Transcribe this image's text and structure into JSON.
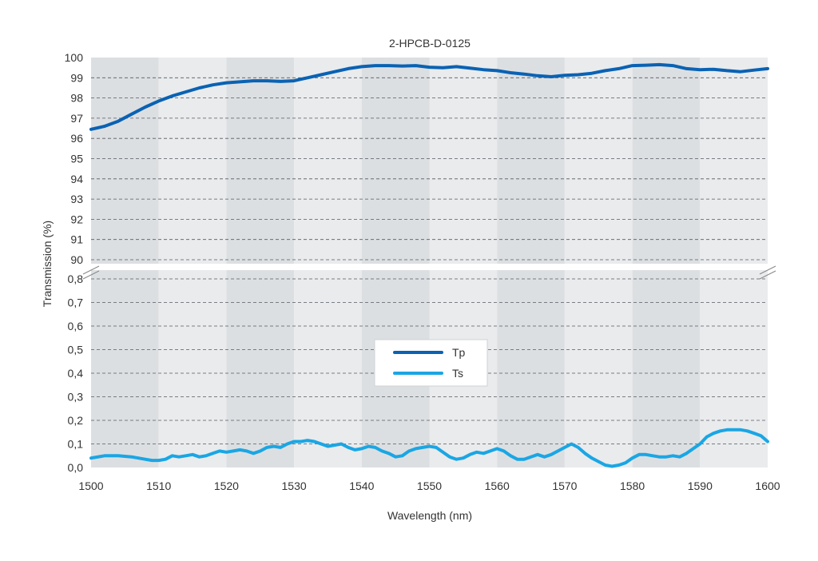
{
  "chart_data": {
    "type": "line",
    "title": "2-HPCB-D-0125",
    "xlabel": "Wavelength (nm)",
    "ylabel": "Transmission (%)",
    "xlim": [
      1500,
      1600
    ],
    "x_ticks": [
      "1500",
      "1510",
      "1520",
      "1530",
      "1540",
      "1550",
      "1560",
      "1570",
      "1580",
      "1590",
      "1600"
    ],
    "y_axis_broken": true,
    "upper_ylim": [
      90,
      100
    ],
    "upper_y_ticks": [
      "100",
      "99",
      "98",
      "97",
      "96",
      "95",
      "94",
      "93",
      "92",
      "91",
      "90"
    ],
    "lower_ylim": [
      0.0,
      0.85
    ],
    "lower_y_ticks": [
      "0,8",
      "0,7",
      "0,6",
      "0,5",
      "0,4",
      "0,3",
      "0,2",
      "0,1",
      "0,0"
    ],
    "grid": "dashed horizontal",
    "background_bands": "alternating gray every 10 nm",
    "legend": {
      "placement": "center",
      "entries": [
        "Tp",
        "Ts"
      ]
    },
    "colors": {
      "Tp": "#0a62b3",
      "Ts": "#1aa6e4",
      "band_dark": "#dcdfe2",
      "band_light": "#e9ebed"
    },
    "series": [
      {
        "name": "Tp",
        "x": [
          1500,
          1502,
          1504,
          1506,
          1508,
          1510,
          1512,
          1514,
          1516,
          1518,
          1520,
          1522,
          1524,
          1526,
          1528,
          1530,
          1532,
          1534,
          1536,
          1538,
          1540,
          1542,
          1544,
          1546,
          1548,
          1550,
          1552,
          1554,
          1556,
          1558,
          1560,
          1562,
          1564,
          1566,
          1568,
          1570,
          1572,
          1574,
          1576,
          1578,
          1580,
          1582,
          1584,
          1586,
          1588,
          1590,
          1592,
          1594,
          1596,
          1598,
          1600
        ],
        "y": [
          96.45,
          96.6,
          96.85,
          97.2,
          97.55,
          97.85,
          98.1,
          98.3,
          98.5,
          98.65,
          98.75,
          98.8,
          98.85,
          98.85,
          98.82,
          98.85,
          99.0,
          99.15,
          99.3,
          99.45,
          99.55,
          99.6,
          99.6,
          99.58,
          99.6,
          99.52,
          99.5,
          99.55,
          99.48,
          99.4,
          99.35,
          99.25,
          99.18,
          99.1,
          99.05,
          99.12,
          99.15,
          99.22,
          99.35,
          99.45,
          99.6,
          99.62,
          99.65,
          99.6,
          99.45,
          99.4,
          99.42,
          99.35,
          99.3,
          99.38,
          99.45
        ]
      },
      {
        "name": "Ts",
        "x": [
          1500,
          1502,
          1504,
          1506,
          1508,
          1509,
          1510,
          1511,
          1512,
          1513,
          1514,
          1515,
          1516,
          1517,
          1518,
          1519,
          1520,
          1521,
          1522,
          1523,
          1524,
          1525,
          1526,
          1527,
          1528,
          1529,
          1530,
          1531,
          1532,
          1533,
          1534,
          1535,
          1536,
          1537,
          1538,
          1539,
          1540,
          1541,
          1542,
          1543,
          1544,
          1545,
          1546,
          1547,
          1548,
          1549,
          1550,
          1551,
          1552,
          1553,
          1554,
          1555,
          1556,
          1557,
          1558,
          1559,
          1560,
          1561,
          1562,
          1563,
          1564,
          1565,
          1566,
          1567,
          1568,
          1569,
          1570,
          1571,
          1572,
          1573,
          1574,
          1575,
          1576,
          1577,
          1578,
          1579,
          1580,
          1581,
          1582,
          1583,
          1584,
          1585,
          1586,
          1587,
          1588,
          1589,
          1590,
          1591,
          1592,
          1593,
          1594,
          1595,
          1596,
          1597,
          1598,
          1599,
          1600
        ],
        "y": [
          0.04,
          0.05,
          0.05,
          0.045,
          0.035,
          0.03,
          0.03,
          0.035,
          0.05,
          0.045,
          0.05,
          0.055,
          0.045,
          0.05,
          0.06,
          0.07,
          0.065,
          0.07,
          0.075,
          0.07,
          0.06,
          0.07,
          0.085,
          0.09,
          0.085,
          0.1,
          0.11,
          0.11,
          0.115,
          0.11,
          0.1,
          0.09,
          0.095,
          0.1,
          0.085,
          0.075,
          0.08,
          0.09,
          0.085,
          0.07,
          0.06,
          0.045,
          0.05,
          0.07,
          0.08,
          0.085,
          0.09,
          0.085,
          0.065,
          0.045,
          0.035,
          0.04,
          0.055,
          0.065,
          0.06,
          0.07,
          0.08,
          0.07,
          0.05,
          0.035,
          0.035,
          0.045,
          0.055,
          0.045,
          0.055,
          0.07,
          0.085,
          0.1,
          0.085,
          0.06,
          0.04,
          0.025,
          0.01,
          0.005,
          0.01,
          0.02,
          0.04,
          0.055,
          0.055,
          0.05,
          0.045,
          0.045,
          0.05,
          0.045,
          0.06,
          0.08,
          0.1,
          0.13,
          0.145,
          0.155,
          0.16,
          0.16,
          0.16,
          0.155,
          0.145,
          0.135,
          0.11
        ]
      }
    ]
  }
}
